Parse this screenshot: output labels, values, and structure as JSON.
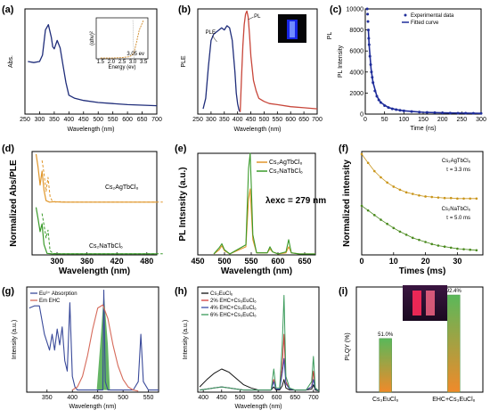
{
  "chart_data": [
    {
      "panel": "(a)",
      "type": "line",
      "xlabel": "Wavelength (nm)",
      "ylabel": "Abs.",
      "xlim": [
        250,
        700
      ],
      "ylim": [
        0,
        1
      ],
      "xticks": [
        "250",
        "300",
        "350",
        "400",
        "450",
        "500",
        "550",
        "600",
        "650",
        "700"
      ],
      "series": [
        {
          "color": "#1f2d7a",
          "x": [
            260,
            280,
            300,
            310,
            320,
            330,
            340,
            345,
            350,
            360,
            370,
            380,
            390,
            400,
            420,
            450,
            500,
            550,
            600,
            650,
            700
          ],
          "y": [
            0.5,
            0.49,
            0.5,
            0.56,
            0.8,
            0.85,
            0.73,
            0.64,
            0.62,
            0.7,
            0.63,
            0.46,
            0.3,
            0.18,
            0.15,
            0.13,
            0.11,
            0.1,
            0.09,
            0.085,
            0.08
          ]
        }
      ],
      "inset": {
        "xlabel": "Energy (ev)",
        "ylabel": "(αhν)²",
        "annotation": "3.05 ev",
        "xticks": [
          "1.5",
          "2.0",
          "2.5",
          "3.0",
          "3.5"
        ],
        "x": [
          1.5,
          2.0,
          2.5,
          2.8,
          2.95,
          3.05,
          3.15,
          3.3,
          3.5
        ],
        "y": [
          0.02,
          0.02,
          0.03,
          0.05,
          0.08,
          0.15,
          0.35,
          0.7,
          0.95
        ]
      }
    },
    {
      "panel": "(b)",
      "type": "line",
      "xlabel": "Wavelength (nm)",
      "ylabel": "PLE",
      "ylabel_right": "PL",
      "xlim": [
        250,
        700
      ],
      "ylim": [
        0,
        1
      ],
      "xticks": [
        "250",
        "300",
        "350",
        "400",
        "450",
        "500",
        "550",
        "600",
        "650",
        "700"
      ],
      "series": [
        {
          "name": "PLE",
          "color": "#1f2d7a",
          "x": [
            270,
            280,
            290,
            300,
            310,
            320,
            330,
            340,
            350,
            360,
            370,
            380,
            390,
            395,
            400,
            405,
            410
          ],
          "y": [
            0.05,
            0.15,
            0.45,
            0.7,
            0.76,
            0.78,
            0.8,
            0.82,
            0.8,
            0.84,
            0.82,
            0.7,
            0.4,
            0.2,
            0.1,
            0.04,
            0.02
          ]
        },
        {
          "name": "PL",
          "color": "#c8463a",
          "x": [
            410,
            415,
            420,
            425,
            430,
            435,
            440,
            445,
            450,
            460,
            470,
            480,
            500,
            520,
            550,
            600,
            650,
            700
          ],
          "y": [
            0.02,
            0.35,
            0.65,
            0.85,
            0.95,
            0.98,
            0.92,
            0.75,
            0.55,
            0.32,
            0.22,
            0.15,
            0.12,
            0.1,
            0.09,
            0.07,
            0.06,
            0.05
          ]
        }
      ]
    },
    {
      "panel": "(c)",
      "type": "scatter",
      "xlabel": "Time (ns)",
      "ylabel": "PL Intensity",
      "ylabel_outer": "PL",
      "xlim": [
        0,
        300
      ],
      "ylim": [
        0,
        10000
      ],
      "xticks": [
        "0",
        "50",
        "100",
        "150",
        "200",
        "250",
        "300"
      ],
      "yticks": [
        "0",
        "2000",
        "4000",
        "6000",
        "8000",
        "10000"
      ],
      "legend_position": "top-right",
      "series": [
        {
          "name": "Experimental data",
          "color": "#1f2d9a",
          "x": [
            5,
            6,
            7,
            8,
            9,
            10,
            12,
            14,
            16,
            18,
            20,
            25,
            30,
            35,
            40,
            50,
            60,
            70,
            80,
            90,
            100,
            120,
            140,
            160,
            180,
            200,
            220,
            240,
            260,
            280,
            300
          ],
          "y": [
            10000,
            9500,
            8800,
            8000,
            7200,
            6600,
            5500,
            4700,
            4000,
            3500,
            3000,
            2200,
            1700,
            1350,
            1100,
            800,
            620,
            500,
            420,
            360,
            310,
            240,
            190,
            160,
            135,
            115,
            100,
            90,
            80,
            72,
            65
          ]
        },
        {
          "name": "Fitted curve",
          "color": "#1f2d9a",
          "x": [
            8,
            10,
            15,
            20,
            30,
            40,
            60,
            80,
            100,
            150,
            200,
            300
          ],
          "y": [
            8000,
            6600,
            4300,
            3000,
            1700,
            1100,
            620,
            420,
            310,
            170,
            115,
            65
          ]
        }
      ]
    },
    {
      "panel": "(d)",
      "type": "line",
      "xlabel": "Wavelength (nm)",
      "ylabel": "Normalized Abs/PLE",
      "xlim": [
        250,
        500
      ],
      "ylim": [
        0,
        2
      ],
      "xticks": [
        "300",
        "360",
        "420",
        "480"
      ],
      "series": [
        {
          "name": "Cs₂AgTbCl₆",
          "color": "#e0962a",
          "x": [
            258,
            262,
            266,
            270,
            274,
            278,
            285,
            295,
            310,
            330,
            360,
            400,
            450,
            500
          ],
          "y": [
            1.95,
            1.7,
            1.35,
            1.62,
            1.25,
            1.05,
            1.02,
            1.03,
            1.02,
            1.02,
            1.02,
            1.02,
            1.02,
            1.02
          ]
        },
        {
          "name": "Cs₂NaTbCl₆",
          "color": "#3a9a2a",
          "x": [
            258,
            262,
            266,
            270,
            274,
            280,
            290,
            310,
            330,
            360,
            400,
            450,
            500
          ],
          "y": [
            0.92,
            0.7,
            0.45,
            0.6,
            0.2,
            0.03,
            0.02,
            0.02,
            0.02,
            0.02,
            0.02,
            0.02,
            0.02
          ]
        }
      ]
    },
    {
      "panel": "(e)",
      "type": "line",
      "xlabel": "Wavelength (nm)",
      "ylabel": "PL Intsnsity (a.u.)",
      "annotation": "λexc = 279 nm",
      "xlim": [
        450,
        670
      ],
      "ylim": [
        0,
        1
      ],
      "xticks": [
        "450",
        "500",
        "550",
        "600",
        "650"
      ],
      "legend_position": "top-right",
      "series": [
        {
          "name": "Cs₂AgTbCl₆",
          "color": "#e0962a",
          "x": [
            480,
            490,
            495,
            500,
            510,
            540,
            545,
            548,
            550,
            553,
            560,
            580,
            585,
            590,
            600,
            615,
            620,
            625,
            640,
            670
          ],
          "y": [
            0.01,
            0.05,
            0.09,
            0.04,
            0.01,
            0.08,
            0.55,
            0.65,
            0.45,
            0.15,
            0.02,
            0.02,
            0.06,
            0.03,
            0.01,
            0.02,
            0.08,
            0.02,
            0.01,
            0.01
          ]
        },
        {
          "name": "Cs₂NaTbCl₆",
          "color": "#3a9a2a",
          "x": [
            480,
            490,
            495,
            500,
            510,
            540,
            545,
            548,
            550,
            553,
            560,
            580,
            585,
            590,
            600,
            615,
            620,
            625,
            640,
            670
          ],
          "y": [
            0.01,
            0.07,
            0.11,
            0.05,
            0.01,
            0.1,
            0.85,
            1.0,
            0.7,
            0.2,
            0.02,
            0.02,
            0.08,
            0.03,
            0.01,
            0.03,
            0.15,
            0.02,
            0.01,
            0.01
          ]
        }
      ]
    },
    {
      "panel": "(f)",
      "type": "scatter",
      "xlabel": "Times (ms)",
      "ylabel": "Normalized intensity",
      "xlim": [
        0,
        38
      ],
      "ylim": [
        0,
        2
      ],
      "xticks": [
        "0",
        "10",
        "20",
        "30"
      ],
      "series": [
        {
          "name": "Cs₂AgTbCl₆",
          "annotation": "τ = 3.3 ms",
          "color": "#c9951a",
          "x": [
            0,
            2,
            4,
            6,
            8,
            10,
            12,
            14,
            16,
            18,
            20,
            22,
            24,
            26,
            28,
            30,
            32,
            34,
            36
          ],
          "y": [
            1.95,
            1.78,
            1.62,
            1.5,
            1.4,
            1.32,
            1.26,
            1.21,
            1.18,
            1.15,
            1.13,
            1.12,
            1.11,
            1.1,
            1.1,
            1.09,
            1.09,
            1.09,
            1.09
          ]
        },
        {
          "name": "Cs₂NaTbCl₆",
          "annotation": "τ = 5.0 ms",
          "color": "#4a8a1e",
          "x": [
            0,
            2,
            4,
            6,
            8,
            10,
            12,
            14,
            16,
            18,
            20,
            22,
            24,
            26,
            28,
            30,
            32,
            34,
            36
          ],
          "y": [
            0.95,
            0.86,
            0.77,
            0.68,
            0.6,
            0.52,
            0.45,
            0.39,
            0.33,
            0.29,
            0.25,
            0.21,
            0.18,
            0.16,
            0.14,
            0.12,
            0.11,
            0.1,
            0.09
          ]
        }
      ]
    },
    {
      "panel": "(g)",
      "type": "line",
      "xlabel": "Wavelength (nm)",
      "ylabel": "Intensity (a.u.)",
      "xlim": [
        310,
        570
      ],
      "ylim": [
        0,
        1
      ],
      "xticks": [
        "350",
        "400",
        "450",
        "500",
        "550"
      ],
      "legend_position": "top-left",
      "series": [
        {
          "name": "Eu³⁺ Absorption",
          "color": "#3a4a9a",
          "x": [
            315,
            325,
            335,
            345,
            355,
            360,
            365,
            370,
            375,
            380,
            385,
            390,
            395,
            400,
            405,
            410,
            420,
            440,
            460,
            462,
            465,
            470,
            480,
            500,
            520,
            530,
            535,
            540,
            550,
            560,
            570
          ],
          "y": [
            0.8,
            0.82,
            0.82,
            0.55,
            0.4,
            0.55,
            0.4,
            0.6,
            0.45,
            0.62,
            0.3,
            0.2,
            0.85,
            0.15,
            0.05,
            0.02,
            0.02,
            0.02,
            0.02,
            0.97,
            0.1,
            0.02,
            0.02,
            0.02,
            0.02,
            0.1,
            0.55,
            0.1,
            0.02,
            0.02,
            0.02
          ]
        },
        {
          "name": "Em EHC",
          "color": "#d66a5a",
          "x": [
            400,
            410,
            420,
            430,
            440,
            450,
            460,
            470,
            480,
            490,
            500,
            510,
            520,
            530
          ],
          "y": [
            0.02,
            0.05,
            0.15,
            0.35,
            0.6,
            0.8,
            0.83,
            0.7,
            0.45,
            0.25,
            0.12,
            0.05,
            0.02,
            0.01
          ]
        }
      ]
    },
    {
      "panel": "(h)",
      "type": "line",
      "xlabel": "Wavelength (nm)",
      "ylabel": "Intensity (a.u.)",
      "xlim": [
        385,
        715
      ],
      "ylim": [
        0,
        1
      ],
      "xticks": [
        "400",
        "450",
        "500",
        "550",
        "600",
        "650",
        "700"
      ],
      "legend_position": "top-left",
      "series": [
        {
          "name": "Cs₃EuCl₆",
          "color": "#111111",
          "x": [
            390,
            410,
            430,
            450,
            470,
            490,
            510,
            530,
            550,
            570,
            585,
            592,
            598,
            608,
            615,
            620,
            625,
            635,
            650,
            680,
            695,
            700,
            705,
            715
          ],
          "y": [
            0.05,
            0.12,
            0.18,
            0.22,
            0.19,
            0.13,
            0.07,
            0.04,
            0.02,
            0.02,
            0.02,
            0.05,
            0.02,
            0.02,
            0.06,
            0.12,
            0.04,
            0.02,
            0.02,
            0.02,
            0.03,
            0.07,
            0.02,
            0.01
          ]
        },
        {
          "name": "2% EHC+Cs₃EuCl₆",
          "color": "#d43a3a",
          "x": [
            390,
            410,
            430,
            450,
            470,
            490,
            510,
            530,
            550,
            570,
            585,
            592,
            598,
            608,
            615,
            620,
            625,
            635,
            650,
            680,
            695,
            700,
            705,
            715
          ],
          "y": [
            0.02,
            0.03,
            0.04,
            0.05,
            0.04,
            0.03,
            0.02,
            0.02,
            0.02,
            0.02,
            0.02,
            0.12,
            0.03,
            0.03,
            0.25,
            0.55,
            0.1,
            0.03,
            0.02,
            0.02,
            0.05,
            0.2,
            0.03,
            0.01
          ]
        },
        {
          "name": "4% EHC+Cs₃EuCl₆",
          "color": "#3a4aa8",
          "x": [
            390,
            410,
            430,
            450,
            470,
            490,
            510,
            530,
            550,
            570,
            585,
            592,
            598,
            608,
            615,
            620,
            625,
            635,
            650,
            680,
            695,
            700,
            705,
            715
          ],
          "y": [
            0.02,
            0.03,
            0.04,
            0.05,
            0.04,
            0.03,
            0.02,
            0.02,
            0.02,
            0.02,
            0.02,
            0.1,
            0.03,
            0.03,
            0.18,
            0.32,
            0.08,
            0.03,
            0.02,
            0.02,
            0.05,
            0.12,
            0.03,
            0.01
          ]
        },
        {
          "name": "6% EHC+Cs₃EuCl₆",
          "color": "#3a9a5a",
          "x": [
            390,
            410,
            430,
            450,
            470,
            490,
            510,
            530,
            550,
            570,
            585,
            592,
            598,
            608,
            615,
            620,
            625,
            635,
            650,
            680,
            695,
            700,
            705,
            715
          ],
          "y": [
            0.02,
            0.03,
            0.04,
            0.05,
            0.04,
            0.03,
            0.02,
            0.02,
            0.02,
            0.02,
            0.02,
            0.22,
            0.04,
            0.04,
            0.45,
            0.92,
            0.15,
            0.04,
            0.02,
            0.02,
            0.1,
            0.34,
            0.04,
            0.01
          ]
        }
      ]
    },
    {
      "panel": "(i)",
      "type": "bar",
      "ylabel": "PLQY (%)",
      "ylim": [
        0,
        100
      ],
      "categories": [
        "Cs₃EuCl₆",
        "EHC+Cs₃EuCl₆"
      ],
      "values": [
        51.0,
        92.4
      ],
      "value_labels": [
        "51.0%",
        "92.4%"
      ],
      "bar_gradient": [
        "#5ab85a",
        "#f08a2a"
      ]
    }
  ]
}
